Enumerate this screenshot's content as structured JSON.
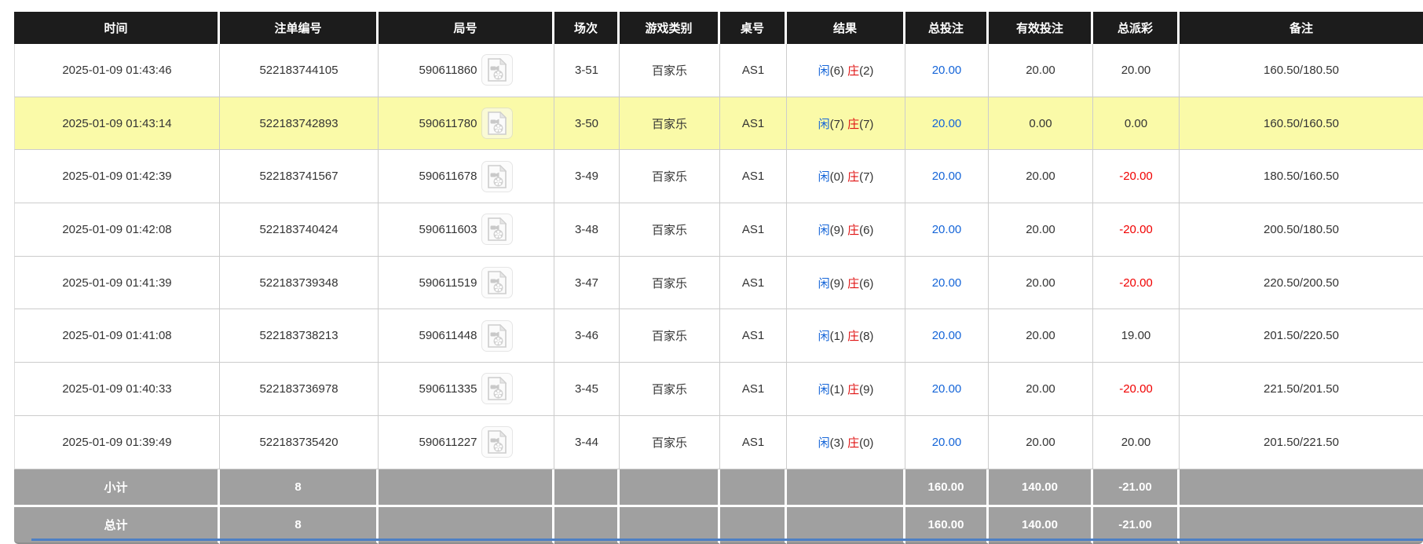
{
  "table": {
    "columns": [
      "时间",
      "注单编号",
      "局号",
      "场次",
      "游戏类别",
      "桌号",
      "结果",
      "总投注",
      "有效投注",
      "总派彩",
      "备注"
    ],
    "result_labels": {
      "player": "闲",
      "banker": "庄"
    },
    "rows": [
      {
        "time": "2025-01-09 01:43:46",
        "bet_id": "522183744105",
        "round_id": "590611860",
        "session": "3-51",
        "game": "百家乐",
        "table_no": "AS1",
        "result": {
          "player": "6",
          "banker": "2"
        },
        "total_bet": "20.00",
        "valid_bet": "20.00",
        "payout": "20.00",
        "remark": "160.50/180.50",
        "highlighted": false
      },
      {
        "time": "2025-01-09 01:43:14",
        "bet_id": "522183742893",
        "round_id": "590611780",
        "session": "3-50",
        "game": "百家乐",
        "table_no": "AS1",
        "result": {
          "player": "7",
          "banker": "7"
        },
        "total_bet": "20.00",
        "valid_bet": "0.00",
        "payout": "0.00",
        "remark": "160.50/160.50",
        "highlighted": true
      },
      {
        "time": "2025-01-09 01:42:39",
        "bet_id": "522183741567",
        "round_id": "590611678",
        "session": "3-49",
        "game": "百家乐",
        "table_no": "AS1",
        "result": {
          "player": "0",
          "banker": "7"
        },
        "total_bet": "20.00",
        "valid_bet": "20.00",
        "payout": "-20.00",
        "remark": "180.50/160.50",
        "highlighted": false
      },
      {
        "time": "2025-01-09 01:42:08",
        "bet_id": "522183740424",
        "round_id": "590611603",
        "session": "3-48",
        "game": "百家乐",
        "table_no": "AS1",
        "result": {
          "player": "9",
          "banker": "6"
        },
        "total_bet": "20.00",
        "valid_bet": "20.00",
        "payout": "-20.00",
        "remark": "200.50/180.50",
        "highlighted": false
      },
      {
        "time": "2025-01-09 01:41:39",
        "bet_id": "522183739348",
        "round_id": "590611519",
        "session": "3-47",
        "game": "百家乐",
        "table_no": "AS1",
        "result": {
          "player": "9",
          "banker": "6"
        },
        "total_bet": "20.00",
        "valid_bet": "20.00",
        "payout": "-20.00",
        "remark": "220.50/200.50",
        "highlighted": false
      },
      {
        "time": "2025-01-09 01:41:08",
        "bet_id": "522183738213",
        "round_id": "590611448",
        "session": "3-46",
        "game": "百家乐",
        "table_no": "AS1",
        "result": {
          "player": "1",
          "banker": "8"
        },
        "total_bet": "20.00",
        "valid_bet": "20.00",
        "payout": "19.00",
        "remark": "201.50/220.50",
        "highlighted": false
      },
      {
        "time": "2025-01-09 01:40:33",
        "bet_id": "522183736978",
        "round_id": "590611335",
        "session": "3-45",
        "game": "百家乐",
        "table_no": "AS1",
        "result": {
          "player": "1",
          "banker": "9"
        },
        "total_bet": "20.00",
        "valid_bet": "20.00",
        "payout": "-20.00",
        "remark": "221.50/201.50",
        "highlighted": false
      },
      {
        "time": "2025-01-09 01:39:49",
        "bet_id": "522183735420",
        "round_id": "590611227",
        "session": "3-44",
        "game": "百家乐",
        "table_no": "AS1",
        "result": {
          "player": "3",
          "banker": "0"
        },
        "total_bet": "20.00",
        "valid_bet": "20.00",
        "payout": "20.00",
        "remark": "201.50/221.50",
        "highlighted": false
      }
    ],
    "subtotal": {
      "label": "小计",
      "count": "8",
      "total_bet": "160.00",
      "valid_bet": "140.00",
      "payout": "-21.00"
    },
    "total": {
      "label": "总计",
      "count": "8",
      "total_bet": "160.00",
      "valid_bet": "140.00",
      "payout": "-21.00"
    }
  },
  "icons": {
    "round_video": "video-file-icon"
  },
  "colors": {
    "header_bg": "#1c1c1c",
    "highlight_row": "#fafaa8",
    "link_blue": "#1565d8",
    "player_blue": "#1565d8",
    "banker_red": "#e01414",
    "negative_red": "#f00000",
    "summary_bg": "#a0a0a0",
    "grid_border": "#cccccc",
    "bottom_bar": "#4d7fc4"
  }
}
